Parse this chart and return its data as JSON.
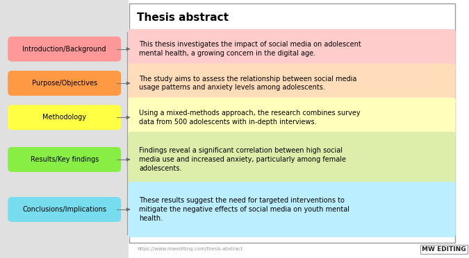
{
  "title": "Thesis abstract",
  "title_fontsize": 11,
  "title_fontweight": "bold",
  "url_text": "https://www.mwediting.com/thesis-abstract",
  "logo_text": "MW EDITING",
  "bg_color": "#ffffff",
  "left_bg": "#e8e8e8",
  "right_border_color": "#aaaaaa",
  "labels": [
    {
      "text": "Introduction/Background",
      "color": "#ff9999"
    },
    {
      "text": "Purpose/Objectives",
      "color": "#ff9944"
    },
    {
      "text": "Methodology",
      "color": "#ffff44"
    },
    {
      "text": "Results/Key findings",
      "color": "#88ee44"
    },
    {
      "text": "Conclusions/Implications",
      "color": "#77ddee"
    }
  ],
  "text_boxes": [
    {
      "text": "This thesis investigates the impact of social media on adolescent\nmental health, a growing concern in the digital age.",
      "color": "#ffcccc",
      "lines": 2
    },
    {
      "text": "The study aims to assess the relationship between social media\nusage patterns and anxiety levels among adolescents.",
      "color": "#ffddbb",
      "lines": 2
    },
    {
      "text": "Using a mixed-methods approach, the research combines survey\ndata from 500 adolescents with in-depth interviews.",
      "color": "#ffffbb",
      "lines": 2
    },
    {
      "text": "Findings reveal a significant correlation between high social\nmedia use and increased anxiety, particularly among female\nadolescents.",
      "color": "#ddeeaa",
      "lines": 3
    },
    {
      "text": "These results suggest the need for targeted interventions to\nmitigate the negative effects of social media on youth mental\nhealth.",
      "color": "#bbeeff",
      "lines": 3
    }
  ]
}
